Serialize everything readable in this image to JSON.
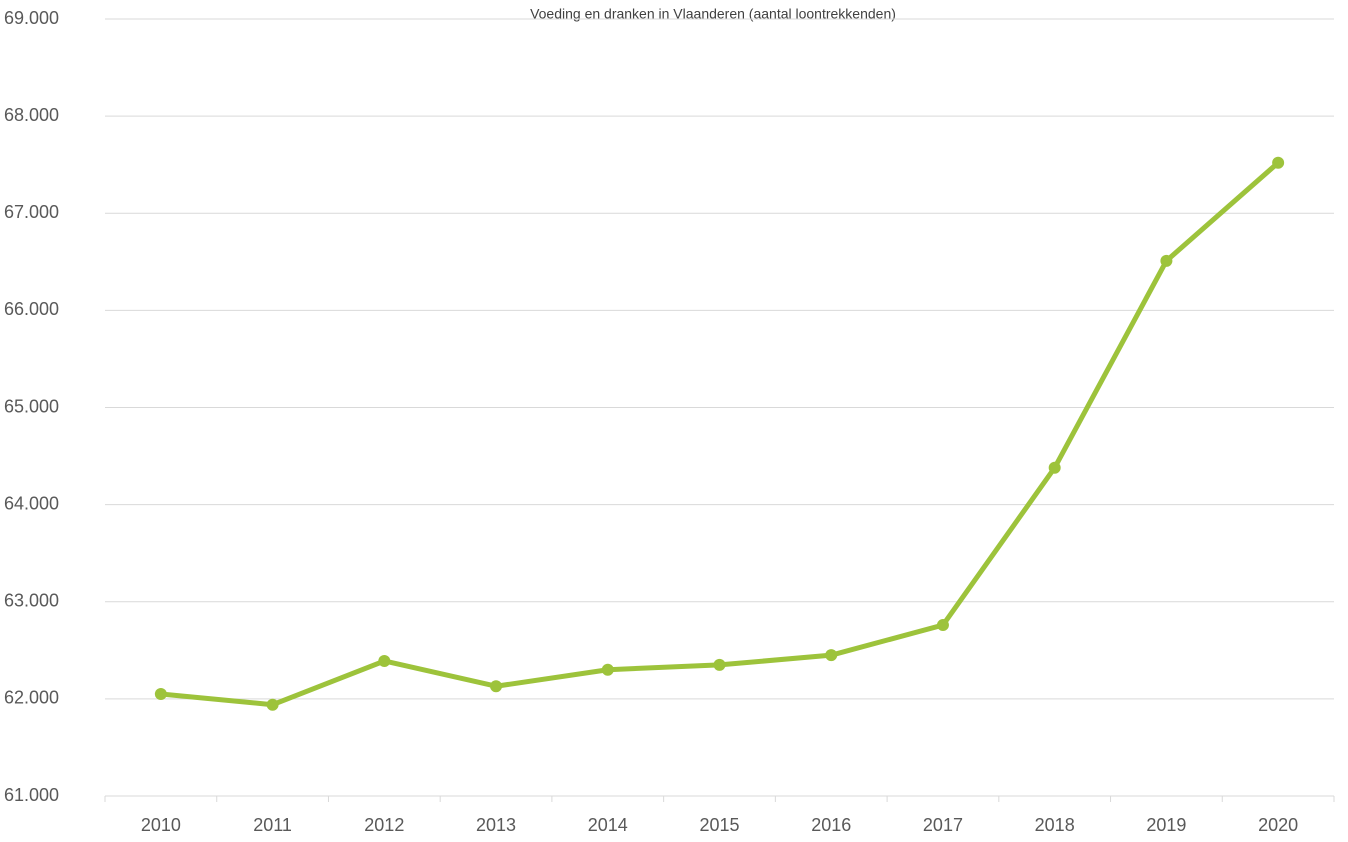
{
  "chart_data": {
    "type": "line",
    "title": "Voeding en dranken in Vlaanderen (aantal loontrekkenden)",
    "categories": [
      "2010",
      "2011",
      "2012",
      "2013",
      "2014",
      "2015",
      "2016",
      "2017",
      "2018",
      "2019",
      "2020"
    ],
    "series": [
      {
        "color": "#9dc33b",
        "values": [
          62050,
          61940,
          62390,
          62130,
          62300,
          62350,
          62450,
          62760,
          64380,
          66510,
          67520
        ]
      }
    ],
    "ylim": [
      61000,
      69000
    ],
    "yticks": [
      {
        "value": 61000,
        "label": "61.000"
      },
      {
        "value": 62000,
        "label": "62.000"
      },
      {
        "value": 63000,
        "label": "63.000"
      },
      {
        "value": 64000,
        "label": "64.000"
      },
      {
        "value": 65000,
        "label": "65.000"
      },
      {
        "value": 66000,
        "label": "66.000"
      },
      {
        "value": 67000,
        "label": "67.000"
      },
      {
        "value": 68000,
        "label": "68.000"
      },
      {
        "value": 69000,
        "label": "69.000"
      }
    ],
    "grid": true
  }
}
